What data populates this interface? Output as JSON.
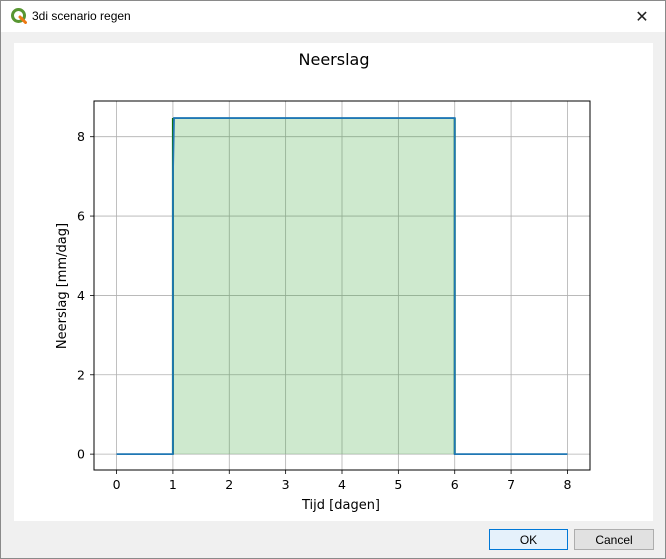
{
  "window": {
    "title": "3di scenario regen",
    "close_glyph": "✕",
    "icon": "qgis-icon"
  },
  "buttons": {
    "ok_label": "OK",
    "cancel_label": "Cancel"
  },
  "chart_data": {
    "type": "line",
    "title": "Neerslag",
    "xlabel": "Tijd [dagen]",
    "ylabel": "Neerslag [mm/dag]",
    "xlim": [
      -0.4,
      8.4
    ],
    "ylim": [
      -0.4,
      8.9
    ],
    "xticks": [
      0,
      1,
      2,
      3,
      4,
      5,
      6,
      7,
      8
    ],
    "yticks": [
      0,
      2,
      4,
      6,
      8
    ],
    "grid": true,
    "series": [
      {
        "color": "#1f77b4",
        "x": [
          0,
          1,
          1,
          1.02,
          6,
          6,
          8
        ],
        "y": [
          0,
          0,
          7,
          8.47,
          8.47,
          0,
          0
        ]
      }
    ],
    "fill": {
      "color": "#2ca02c",
      "x_start": 1,
      "x_end": 6,
      "y": 8.47
    }
  }
}
